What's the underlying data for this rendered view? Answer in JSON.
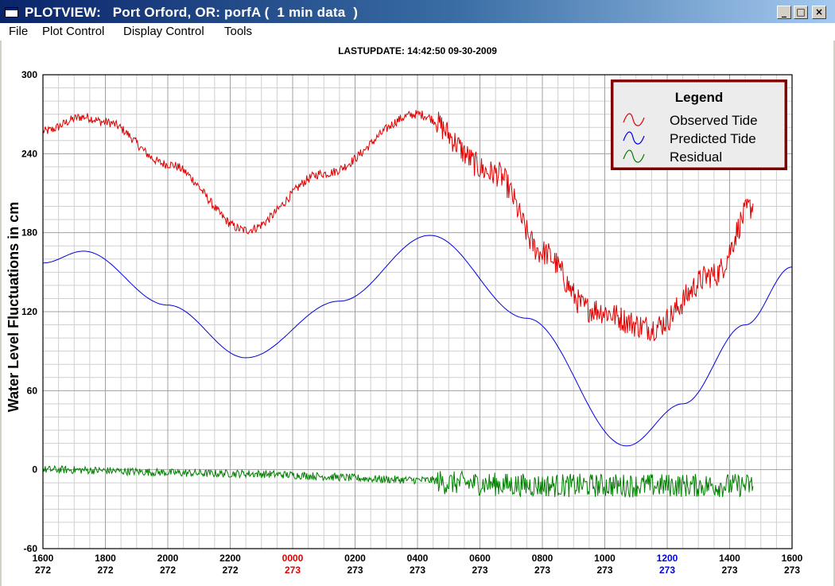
{
  "window": {
    "title": "PLOTVIEW:   Port Orford, OR: porfA (  1 min data  )",
    "controls": [
      "_",
      "□",
      "×"
    ]
  },
  "menu": {
    "items": [
      "File",
      "Plot Control",
      "Display Control",
      "Tools"
    ]
  },
  "chart_data": {
    "type": "line",
    "title": "LASTUPDATE: 14:42:50  09-30-2009",
    "ylabel": "Water Level Fluctuations in cm",
    "xlabel": "",
    "ylim": [
      -60,
      300
    ],
    "yticks": [
      -60,
      0,
      60,
      120,
      180,
      240,
      300
    ],
    "xlim_hours": [
      0,
      24
    ],
    "xticks": [
      {
        "time": "1600",
        "day": "272",
        "color": "#000000"
      },
      {
        "time": "1800",
        "day": "272",
        "color": "#000000"
      },
      {
        "time": "2000",
        "day": "272",
        "color": "#000000"
      },
      {
        "time": "2200",
        "day": "272",
        "color": "#000000"
      },
      {
        "time": "0000",
        "day": "273",
        "color": "#e00000"
      },
      {
        "time": "0200",
        "day": "273",
        "color": "#000000"
      },
      {
        "time": "0400",
        "day": "273",
        "color": "#000000"
      },
      {
        "time": "0600",
        "day": "273",
        "color": "#000000"
      },
      {
        "time": "0800",
        "day": "273",
        "color": "#000000"
      },
      {
        "time": "1000",
        "day": "273",
        "color": "#000000"
      },
      {
        "time": "1200",
        "day": "273",
        "color": "#0000e0"
      },
      {
        "time": "1400",
        "day": "273",
        "color": "#000000"
      },
      {
        "time": "1600",
        "day": "273",
        "color": "#000000"
      }
    ],
    "grid": true,
    "legend": {
      "title": "Legend",
      "placement": "top-right",
      "entries": [
        {
          "name": "Observed Tide",
          "color": "#e00000"
        },
        {
          "name": "Predicted Tide",
          "color": "#0000e0"
        },
        {
          "name": "Residual",
          "color": "#008000"
        }
      ]
    },
    "series": [
      {
        "name": "Observed Tide",
        "color": "#e00000",
        "x": [
          0,
          1.3,
          2,
          4,
          6.5,
          9,
          12,
          14.5,
          16,
          17.5,
          19.5,
          21.5,
          22.75
        ],
        "y": [
          257,
          268,
          264,
          232,
          182,
          225,
          270,
          225,
          165,
          122,
          108,
          148,
          200
        ]
      },
      {
        "name": "Predicted Tide",
        "color": "#0000e0",
        "x": [
          0,
          1.3,
          4,
          6.5,
          9.5,
          12.4,
          15.5,
          18.7,
          20.5,
          22.5,
          24
        ],
        "y": [
          157,
          166,
          125,
          85,
          128,
          178,
          115,
          18,
          50,
          110,
          154
        ]
      },
      {
        "name": "Residual",
        "color": "#008000",
        "x": [
          0,
          6,
          12.5,
          12.9,
          16,
          19,
          22.75
        ],
        "y": [
          0,
          -3,
          -8,
          -10,
          -12,
          -12,
          -12
        ]
      }
    ]
  }
}
